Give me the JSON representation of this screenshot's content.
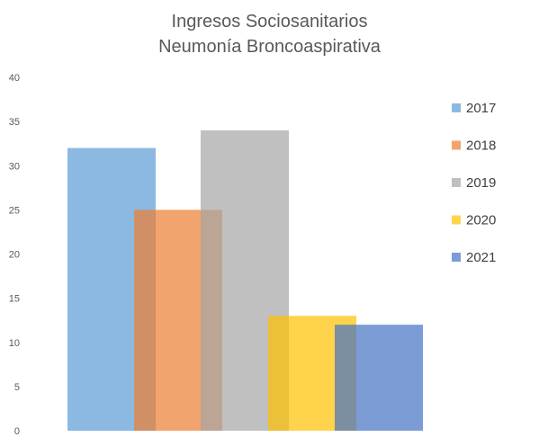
{
  "chart_data": {
    "type": "bar",
    "title": [
      "Ingresos Sociosanitarios",
      "Neumonía Broncoaspirativa"
    ],
    "categories": [
      "2017",
      "2018",
      "2019",
      "2020",
      "2021"
    ],
    "values": [
      32,
      25,
      34,
      13,
      12
    ],
    "series": [
      {
        "name": "2017",
        "value": 32,
        "color": "#5B9BD5"
      },
      {
        "name": "2018",
        "value": 25,
        "color": "#ED7D31"
      },
      {
        "name": "2019",
        "value": 34,
        "color": "#A5A5A5"
      },
      {
        "name": "2020",
        "value": 13,
        "color": "#FFC000"
      },
      {
        "name": "2021",
        "value": 12,
        "color": "#4472C4"
      }
    ],
    "ylim": [
      0,
      40
    ],
    "yticks": [
      0,
      5,
      10,
      15,
      20,
      25,
      30,
      35,
      40
    ],
    "grid": false,
    "legend": "right",
    "bar_opacity": 0.7
  }
}
